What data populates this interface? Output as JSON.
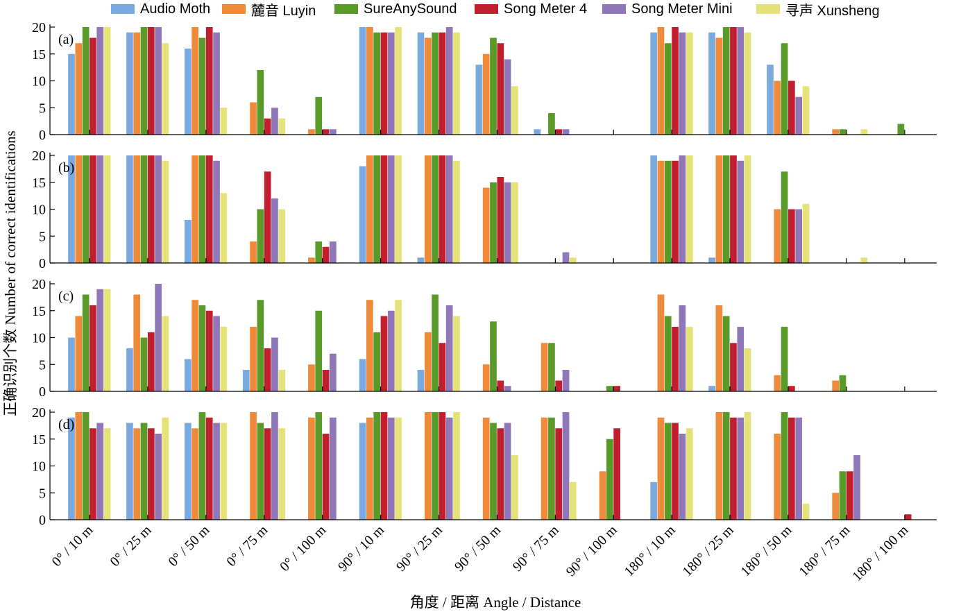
{
  "chart_data": {
    "type": "bar",
    "xlabel": "角度 / 距离 Angle / Distance",
    "ylabel": "正确识别个数 Number of correct identifications",
    "ylim": [
      0,
      20
    ],
    "yticks": [
      0,
      5,
      10,
      15,
      20
    ],
    "grid": false,
    "legend_position": "top",
    "categories": [
      "0° / 10 m",
      "0° / 25 m",
      "0° / 50 m",
      "0° / 75 m",
      "0° / 100 m",
      "90° / 10 m",
      "90° / 25 m",
      "90° / 50 m",
      "90° / 75 m",
      "90° / 100 m",
      "180° / 10 m",
      "180° / 25 m",
      "180° / 50 m",
      "180° / 75 m",
      "180° / 100 m"
    ],
    "series_meta": [
      {
        "name": "Audio Moth",
        "color": "#7aa9e0"
      },
      {
        "name": "麓音 Luyin",
        "color": "#ee8a3a"
      },
      {
        "name": "SureAnySound",
        "color": "#5a9a2a"
      },
      {
        "name": "Song Meter 4",
        "color": "#c11f2e"
      },
      {
        "name": "Song Meter Mini",
        "color": "#9077b8"
      },
      {
        "name": "寻声 Xunsheng",
        "color": "#e6e27a"
      }
    ],
    "panels": [
      {
        "label": "(a)",
        "series": [
          {
            "name": "Audio Moth",
            "values": [
              15,
              19,
              16,
              0,
              0,
              20,
              19,
              13,
              1,
              0,
              19,
              19,
              13,
              0,
              0
            ]
          },
          {
            "name": "麓音 Luyin",
            "values": [
              17,
              19,
              20,
              6,
              1,
              20,
              18,
              15,
              0,
              0,
              20,
              18,
              10,
              1,
              0
            ]
          },
          {
            "name": "SureAnySound",
            "values": [
              20,
              20,
              18,
              12,
              7,
              19,
              19,
              18,
              4,
              0,
              17,
              20,
              17,
              1,
              2
            ]
          },
          {
            "name": "Song Meter 4",
            "values": [
              18,
              20,
              20,
              3,
              1,
              19,
              19,
              17,
              1,
              0,
              20,
              20,
              10,
              0,
              0
            ]
          },
          {
            "name": "Song Meter Mini",
            "values": [
              20,
              20,
              19,
              5,
              1,
              19,
              20,
              14,
              1,
              0,
              19,
              20,
              7,
              0,
              0
            ]
          },
          {
            "name": "寻声 Xunsheng",
            "values": [
              20,
              17,
              5,
              3,
              0,
              20,
              19,
              9,
              0,
              0,
              19,
              19,
              9,
              1,
              0
            ]
          }
        ]
      },
      {
        "label": "(b)",
        "series": [
          {
            "name": "Audio Moth",
            "values": [
              20,
              20,
              8,
              0,
              0,
              18,
              1,
              0,
              0,
              0,
              20,
              1,
              0,
              0,
              0
            ]
          },
          {
            "name": "麓音 Luyin",
            "values": [
              20,
              20,
              20,
              4,
              1,
              20,
              20,
              14,
              0,
              0,
              19,
              20,
              10,
              0,
              0
            ]
          },
          {
            "name": "SureAnySound",
            "values": [
              20,
              20,
              20,
              10,
              4,
              20,
              20,
              15,
              0,
              0,
              19,
              20,
              17,
              0,
              0
            ]
          },
          {
            "name": "Song Meter 4",
            "values": [
              20,
              20,
              20,
              17,
              3,
              20,
              20,
              16,
              0,
              0,
              19,
              20,
              10,
              0,
              0
            ]
          },
          {
            "name": "Song Meter Mini",
            "values": [
              20,
              20,
              19,
              12,
              4,
              20,
              20,
              15,
              2,
              0,
              20,
              19,
              10,
              0,
              0
            ]
          },
          {
            "name": "寻声 Xunsheng",
            "values": [
              20,
              19,
              13,
              10,
              0,
              20,
              19,
              15,
              1,
              0,
              20,
              20,
              11,
              1,
              0
            ]
          }
        ]
      },
      {
        "label": "(c)",
        "series": [
          {
            "name": "Audio Moth",
            "values": [
              10,
              8,
              6,
              4,
              0,
              6,
              4,
              0,
              0,
              0,
              0,
              1,
              0,
              0,
              0
            ]
          },
          {
            "name": "麓音 Luyin",
            "values": [
              14,
              18,
              17,
              12,
              5,
              17,
              11,
              5,
              9,
              0,
              18,
              16,
              3,
              2,
              0
            ]
          },
          {
            "name": "SureAnySound",
            "values": [
              18,
              10,
              16,
              17,
              15,
              11,
              18,
              13,
              9,
              1,
              14,
              14,
              12,
              3,
              0
            ]
          },
          {
            "name": "Song Meter 4",
            "values": [
              16,
              11,
              15,
              8,
              4,
              14,
              9,
              2,
              2,
              1,
              12,
              9,
              1,
              0,
              0
            ]
          },
          {
            "name": "Song Meter Mini",
            "values": [
              19,
              20,
              14,
              10,
              7,
              15,
              16,
              1,
              4,
              0,
              16,
              12,
              0,
              0,
              0
            ]
          },
          {
            "name": "寻声 Xunsheng",
            "values": [
              19,
              14,
              12,
              4,
              0,
              17,
              14,
              0,
              0,
              0,
              12,
              8,
              0,
              0,
              0
            ]
          }
        ]
      },
      {
        "label": "(d)",
        "series": [
          {
            "name": "Audio Moth",
            "values": [
              19,
              18,
              18,
              0,
              0,
              18,
              0,
              0,
              0,
              0,
              7,
              0,
              0,
              0,
              0
            ]
          },
          {
            "name": "麓音 Luyin",
            "values": [
              20,
              17,
              17,
              20,
              19,
              19,
              20,
              19,
              19,
              9,
              19,
              20,
              16,
              5,
              0
            ]
          },
          {
            "name": "SureAnySound",
            "values": [
              20,
              18,
              20,
              18,
              20,
              20,
              20,
              18,
              19,
              15,
              18,
              20,
              20,
              9,
              0
            ]
          },
          {
            "name": "Song Meter 4",
            "values": [
              17,
              17,
              19,
              17,
              16,
              20,
              20,
              17,
              17,
              17,
              18,
              19,
              19,
              9,
              1
            ]
          },
          {
            "name": "Song Meter Mini",
            "values": [
              18,
              16,
              18,
              20,
              19,
              19,
              19,
              18,
              20,
              0,
              16,
              19,
              19,
              12,
              0
            ]
          },
          {
            "name": "寻声 Xunsheng",
            "values": [
              17,
              19,
              18,
              17,
              0,
              19,
              20,
              12,
              7,
              0,
              17,
              20,
              3,
              0,
              0
            ]
          }
        ]
      }
    ]
  }
}
